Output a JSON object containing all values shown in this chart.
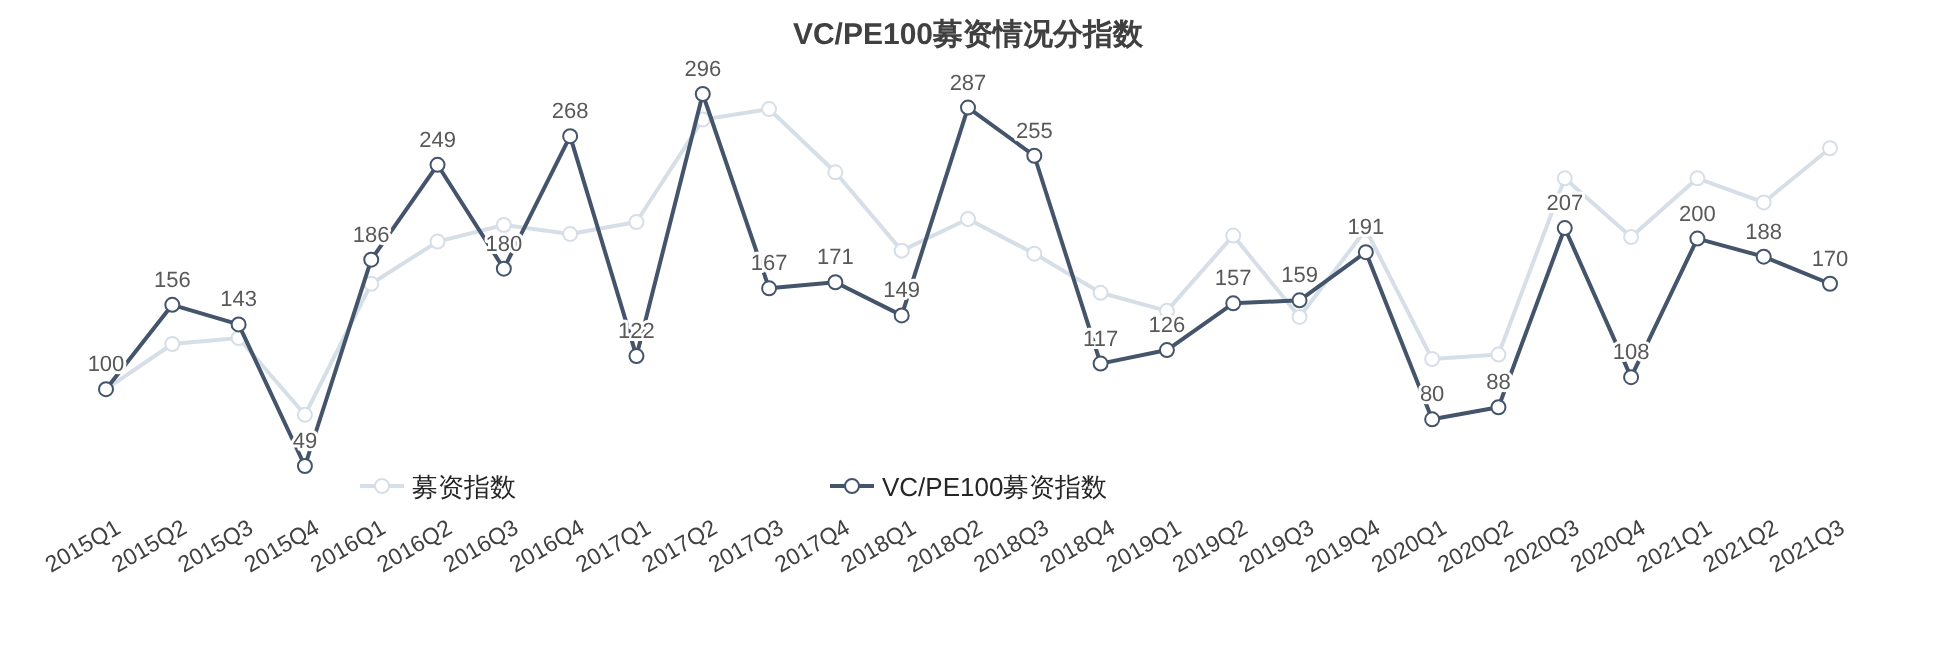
{
  "chart_data": {
    "type": "line",
    "title": "VC/PE100募资情况分指数",
    "categories": [
      "2015Q1",
      "2015Q2",
      "2015Q3",
      "2015Q4",
      "2016Q1",
      "2016Q2",
      "2016Q3",
      "2016Q4",
      "2017Q1",
      "2017Q2",
      "2017Q3",
      "2017Q4",
      "2018Q1",
      "2018Q2",
      "2018Q3",
      "2018Q4",
      "2019Q1",
      "2019Q2",
      "2019Q3",
      "2019Q4",
      "2020Q1",
      "2020Q2",
      "2020Q3",
      "2020Q4",
      "2021Q1",
      "2021Q2",
      "2021Q3"
    ],
    "series": [
      {
        "name": "募资指数",
        "color": "#d6dfe8",
        "values": [
          100,
          130,
          134,
          83,
          170,
          198,
          209,
          203,
          211,
          279,
          286,
          244,
          192,
          213,
          190,
          164,
          152,
          202,
          148,
          206,
          120,
          123,
          240,
          201,
          240,
          224,
          260
        ]
      },
      {
        "name": "VC/PE100募资指数",
        "color": "#44546a",
        "values": [
          100,
          156,
          143,
          49,
          186,
          249,
          180,
          268,
          122,
          296,
          167,
          171,
          149,
          287,
          255,
          117,
          126,
          157,
          159,
          191,
          80,
          88,
          207,
          108,
          200,
          188,
          170
        ],
        "value_labels": [
          "100",
          "156",
          "143",
          "49",
          "186",
          "249",
          "180",
          "268",
          "122",
          "296",
          "167",
          "171",
          "149",
          "287",
          "255",
          "117",
          "126",
          "157",
          "159",
          "191",
          "80",
          "88",
          "207",
          "108",
          "200",
          "188",
          "170"
        ]
      }
    ],
    "marker": "circle",
    "legend": "bottom",
    "grid": false
  }
}
